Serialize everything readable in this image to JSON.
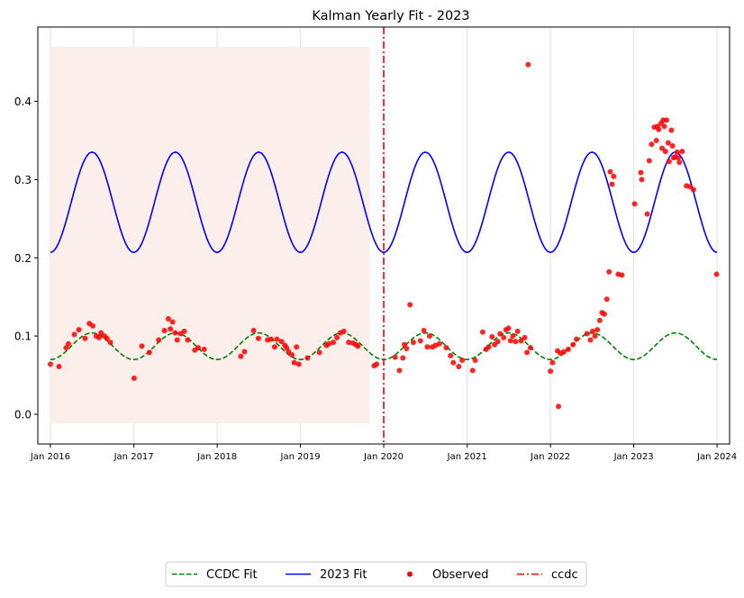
{
  "chart_data": {
    "type": "line",
    "title": "Kalman Yearly Fit - 2023",
    "xlabel": "",
    "ylabel": "",
    "xlim": [
      "2015-11-07",
      "2024-02-25"
    ],
    "ylim": [
      -0.038,
      0.495
    ],
    "x_ticks": [
      {
        "date": "2016-01-01",
        "label": "Jan 2016"
      },
      {
        "date": "2017-01-01",
        "label": "Jan 2017"
      },
      {
        "date": "2018-01-01",
        "label": "Jan 2018"
      },
      {
        "date": "2019-01-01",
        "label": "Jan 2019"
      },
      {
        "date": "2020-01-01",
        "label": "Jan 2020"
      },
      {
        "date": "2021-01-01",
        "label": "Jan 2021"
      },
      {
        "date": "2022-01-01",
        "label": "Jan 2022"
      },
      {
        "date": "2023-01-01",
        "label": "Jan 2023"
      },
      {
        "date": "2024-01-01",
        "label": "Jan 2024"
      }
    ],
    "y_ticks": [
      {
        "value": 0.0,
        "label": "0.0"
      },
      {
        "value": 0.1,
        "label": "0.1"
      },
      {
        "value": 0.2,
        "label": "0.2"
      },
      {
        "value": 0.3,
        "label": "0.3"
      },
      {
        "value": 0.4,
        "label": "0.4"
      }
    ],
    "grid": "vertical lines at yearly ticks",
    "shaded_region": {
      "x_start": "2016-01-01",
      "x_end": "2019-11-01",
      "y_range": [
        -0.012,
        0.47
      ],
      "color": "#fbeeeb"
    },
    "series": [
      {
        "name": "CCDC Fit",
        "style": "dashed",
        "color": "#008000",
        "x_start": "2016-01-01",
        "x_end": "2024-01-01",
        "model": "harmonic",
        "mean": 0.087,
        "amplitude": 0.017,
        "period_years": 1,
        "peak_fraction_of_year": 0.5
      },
      {
        "name": "2023 Fit",
        "style": "solid",
        "color": "#0000ff",
        "x_start": "2016-01-01",
        "x_end": "2024-01-01",
        "model": "harmonic",
        "mean": 0.271,
        "amplitude": 0.064,
        "period_years": 1,
        "peak_fraction_of_year": 0.5
      }
    ],
    "observed": {
      "name": "Observed",
      "color": "#ff0000",
      "points": [
        [
          "2016-01-01",
          0.064
        ],
        [
          "2016-02-08",
          0.061
        ],
        [
          "2016-03-10",
          0.085
        ],
        [
          "2016-03-20",
          0.09
        ],
        [
          "2016-04-15",
          0.102
        ],
        [
          "2016-05-05",
          0.108
        ],
        [
          "2016-06-01",
          0.097
        ],
        [
          "2016-06-20",
          0.116
        ],
        [
          "2016-07-05",
          0.113
        ],
        [
          "2016-07-20",
          0.1
        ],
        [
          "2016-08-01",
          0.098
        ],
        [
          "2016-08-10",
          0.104
        ],
        [
          "2016-08-25",
          0.1
        ],
        [
          "2016-09-05",
          0.097
        ],
        [
          "2016-09-20",
          0.092
        ],
        [
          "2017-01-02",
          0.046
        ],
        [
          "2017-02-05",
          0.087
        ],
        [
          "2017-03-10",
          0.079
        ],
        [
          "2017-04-20",
          0.095
        ],
        [
          "2017-05-15",
          0.107
        ],
        [
          "2017-06-01",
          0.122
        ],
        [
          "2017-06-10",
          0.109
        ],
        [
          "2017-06-20",
          0.118
        ],
        [
          "2017-07-01",
          0.104
        ],
        [
          "2017-07-10",
          0.095
        ],
        [
          "2017-07-25",
          0.103
        ],
        [
          "2017-08-10",
          0.106
        ],
        [
          "2017-08-25",
          0.095
        ],
        [
          "2017-09-25",
          0.082
        ],
        [
          "2017-10-10",
          0.085
        ],
        [
          "2017-11-05",
          0.083
        ],
        [
          "2018-04-15",
          0.074
        ],
        [
          "2018-05-01",
          0.08
        ],
        [
          "2018-06-10",
          0.107
        ],
        [
          "2018-07-01",
          0.097
        ],
        [
          "2018-08-10",
          0.095
        ],
        [
          "2018-08-25",
          0.096
        ],
        [
          "2018-09-10",
          0.086
        ],
        [
          "2018-09-20",
          0.096
        ],
        [
          "2018-10-10",
          0.093
        ],
        [
          "2018-10-25",
          0.088
        ],
        [
          "2018-11-01",
          0.085
        ],
        [
          "2018-11-10",
          0.08
        ],
        [
          "2018-11-25",
          0.076
        ],
        [
          "2018-12-05",
          0.066
        ],
        [
          "2018-12-15",
          0.086
        ],
        [
          "2018-12-25",
          0.064
        ],
        [
          "2019-02-01",
          0.072
        ],
        [
          "2019-03-25",
          0.079
        ],
        [
          "2019-04-25",
          0.088
        ],
        [
          "2019-05-05",
          0.09
        ],
        [
          "2019-05-25",
          0.092
        ],
        [
          "2019-06-10",
          0.098
        ],
        [
          "2019-06-25",
          0.104
        ],
        [
          "2019-07-10",
          0.106
        ],
        [
          "2019-08-01",
          0.092
        ],
        [
          "2019-08-20",
          0.091
        ],
        [
          "2019-09-01",
          0.089
        ],
        [
          "2019-09-10",
          0.087
        ],
        [
          "2019-11-20",
          0.062
        ],
        [
          "2019-12-01",
          0.064
        ],
        [
          "2020-02-20",
          0.073
        ],
        [
          "2020-03-10",
          0.056
        ],
        [
          "2020-03-25",
          0.072
        ],
        [
          "2020-04-01",
          0.089
        ],
        [
          "2020-04-10",
          0.084
        ],
        [
          "2020-04-25",
          0.14
        ],
        [
          "2020-05-10",
          0.092
        ],
        [
          "2020-06-10",
          0.094
        ],
        [
          "2020-06-25",
          0.107
        ],
        [
          "2020-07-10",
          0.086
        ],
        [
          "2020-07-20",
          0.1
        ],
        [
          "2020-08-01",
          0.086
        ],
        [
          "2020-08-15",
          0.088
        ],
        [
          "2020-09-01",
          0.09
        ],
        [
          "2020-10-01",
          0.085
        ],
        [
          "2020-10-20",
          0.075
        ],
        [
          "2020-11-01",
          0.066
        ],
        [
          "2020-11-25",
          0.061
        ],
        [
          "2020-12-10",
          0.069
        ],
        [
          "2021-01-25",
          0.056
        ],
        [
          "2021-02-05",
          0.069
        ],
        [
          "2021-03-10",
          0.105
        ],
        [
          "2021-03-25",
          0.083
        ],
        [
          "2021-04-05",
          0.086
        ],
        [
          "2021-04-20",
          0.099
        ],
        [
          "2021-05-01",
          0.089
        ],
        [
          "2021-05-15",
          0.093
        ],
        [
          "2021-05-25",
          0.103
        ],
        [
          "2021-06-10",
          0.098
        ],
        [
          "2021-06-20",
          0.108
        ],
        [
          "2021-07-01",
          0.11
        ],
        [
          "2021-07-10",
          0.094
        ],
        [
          "2021-07-20",
          0.1
        ],
        [
          "2021-08-01",
          0.093
        ],
        [
          "2021-08-10",
          0.106
        ],
        [
          "2021-08-25",
          0.094
        ],
        [
          "2021-09-10",
          0.098
        ],
        [
          "2021-09-20",
          0.079
        ],
        [
          "2021-10-05",
          0.085
        ],
        [
          "2021-09-25",
          0.447
        ],
        [
          "2022-01-01",
          0.055
        ],
        [
          "2022-01-10",
          0.066
        ],
        [
          "2022-02-01",
          0.081
        ],
        [
          "2022-02-05",
          0.01
        ],
        [
          "2022-02-15",
          0.078
        ],
        [
          "2022-03-01",
          0.08
        ],
        [
          "2022-03-20",
          0.083
        ],
        [
          "2022-04-10",
          0.089
        ],
        [
          "2022-04-25",
          0.096
        ],
        [
          "2022-06-10",
          0.103
        ],
        [
          "2022-06-25",
          0.095
        ],
        [
          "2022-07-05",
          0.106
        ],
        [
          "2022-07-15",
          0.1
        ],
        [
          "2022-07-25",
          0.108
        ],
        [
          "2022-08-05",
          0.12
        ],
        [
          "2022-08-15",
          0.13
        ],
        [
          "2022-08-25",
          0.128
        ],
        [
          "2022-09-05",
          0.147
        ],
        [
          "2022-09-15",
          0.182
        ],
        [
          "2022-09-20",
          0.31
        ],
        [
          "2022-09-28",
          0.294
        ],
        [
          "2022-10-05",
          0.304
        ],
        [
          "2022-10-25",
          0.179
        ],
        [
          "2022-11-10",
          0.178
        ],
        [
          "2023-01-05",
          0.269
        ],
        [
          "2023-02-01",
          0.309
        ],
        [
          "2023-02-05",
          0.3
        ],
        [
          "2023-03-01",
          0.256
        ],
        [
          "2023-03-10",
          0.324
        ],
        [
          "2023-03-20",
          0.345
        ],
        [
          "2023-04-01",
          0.367
        ],
        [
          "2023-04-10",
          0.35
        ],
        [
          "2023-04-15",
          0.368
        ],
        [
          "2023-04-20",
          0.364
        ],
        [
          "2023-05-01",
          0.372
        ],
        [
          "2023-05-05",
          0.34
        ],
        [
          "2023-05-10",
          0.376
        ],
        [
          "2023-05-15",
          0.368
        ],
        [
          "2023-05-20",
          0.336
        ],
        [
          "2023-05-25",
          0.376
        ],
        [
          "2023-06-01",
          0.347
        ],
        [
          "2023-06-05",
          0.323
        ],
        [
          "2023-06-15",
          0.363
        ],
        [
          "2023-06-20",
          0.343
        ],
        [
          "2023-06-25",
          0.328
        ],
        [
          "2023-07-01",
          0.329
        ],
        [
          "2023-07-10",
          0.335
        ],
        [
          "2023-07-15",
          0.328
        ],
        [
          "2023-07-20",
          0.322
        ],
        [
          "2023-08-01",
          0.336
        ],
        [
          "2023-08-20",
          0.292
        ],
        [
          "2023-09-05",
          0.291
        ],
        [
          "2023-09-20",
          0.287
        ],
        [
          "2023-12-30",
          0.179
        ]
      ]
    },
    "vline": {
      "name": "ccdc",
      "x": "2020-01-01",
      "style": "dashdot",
      "color": "#ff0000"
    },
    "legend": {
      "placement": "bottom-center, below the plot",
      "entries": [
        "CCDC Fit",
        "2023 Fit",
        "Observed",
        "ccdc"
      ]
    }
  }
}
